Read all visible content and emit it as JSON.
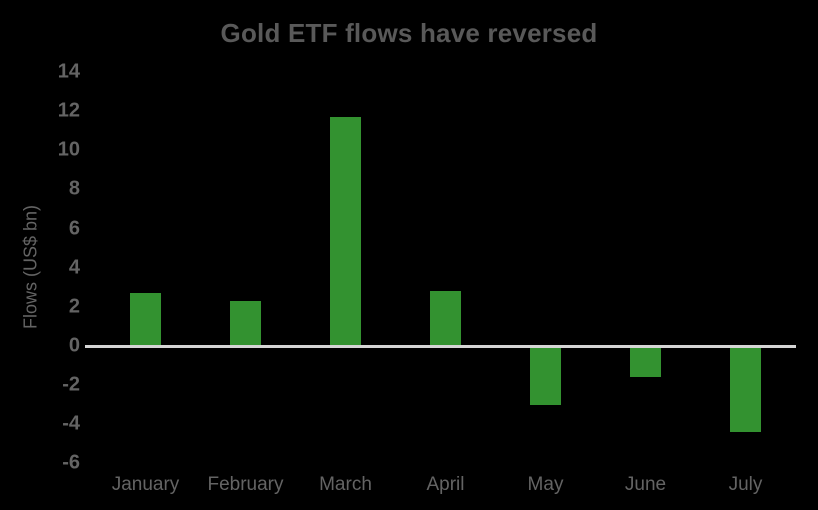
{
  "chart_data": {
    "type": "bar",
    "title": "Gold ETF flows have reversed",
    "ylabel": "Flows (US$ bn)",
    "xlabel": "",
    "categories": [
      "January",
      "February",
      "March",
      "April",
      "May",
      "June",
      "July"
    ],
    "values": [
      2.7,
      2.3,
      11.7,
      2.8,
      -3.0,
      -1.6,
      -4.4
    ],
    "yticks": [
      14,
      12,
      10,
      8,
      6,
      4,
      2,
      0,
      -2,
      -4,
      -6
    ],
    "ylim": [
      -6,
      14
    ],
    "grid": false,
    "legend_position": "none",
    "colors": {
      "background": "#000000",
      "bar": "#339230",
      "zero_line": "#d5d5d5",
      "title_text": "#595959",
      "axis_text": "#646464"
    }
  }
}
